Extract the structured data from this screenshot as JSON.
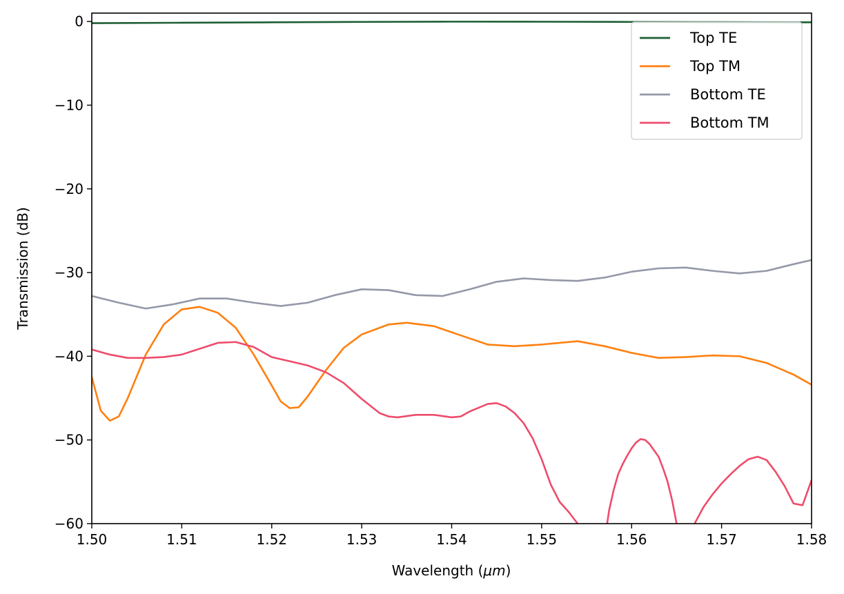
{
  "chart_data": {
    "type": "line",
    "xlabel": "Wavelength (",
    "xlabel_unit": "μm",
    "xlabel_end": ")",
    "ylabel": "Transmission (dB)",
    "xlim": [
      1.5,
      1.58
    ],
    "ylim": [
      -60,
      1
    ],
    "x_ticks": [
      1.5,
      1.51,
      1.52,
      1.53,
      1.54,
      1.55,
      1.56,
      1.57,
      1.58
    ],
    "x_tick_labels": [
      "1.50",
      "1.51",
      "1.52",
      "1.53",
      "1.54",
      "1.55",
      "1.56",
      "1.57",
      "1.58"
    ],
    "y_ticks": [
      0,
      -10,
      -20,
      -30,
      -40,
      -50,
      -60
    ],
    "y_tick_labels": [
      "0",
      "−10",
      "−20",
      "−30",
      "−40",
      "−50",
      "−60"
    ],
    "grid": false,
    "legend_position": "top-right",
    "series": [
      {
        "name": "Top TE",
        "color": "#1c5e33",
        "x": [
          1.5,
          1.51,
          1.52,
          1.53,
          1.54,
          1.55,
          1.56,
          1.57,
          1.58
        ],
        "y": [
          -0.2,
          -0.15,
          -0.1,
          -0.05,
          -0.02,
          -0.03,
          -0.05,
          -0.08,
          -0.1
        ]
      },
      {
        "name": "Top TM",
        "color": "#ff7f0e",
        "x": [
          1.5,
          1.501,
          1.502,
          1.503,
          1.504,
          1.506,
          1.508,
          1.51,
          1.512,
          1.514,
          1.516,
          1.518,
          1.52,
          1.521,
          1.522,
          1.523,
          1.524,
          1.526,
          1.528,
          1.53,
          1.533,
          1.535,
          1.538,
          1.541,
          1.544,
          1.547,
          1.55,
          1.554,
          1.557,
          1.56,
          1.563,
          1.566,
          1.569,
          1.572,
          1.575,
          1.578,
          1.58
        ],
        "y": [
          -42.5,
          -46.5,
          -47.7,
          -47.2,
          -45.0,
          -39.8,
          -36.2,
          -34.4,
          -34.1,
          -34.8,
          -36.6,
          -39.8,
          -43.5,
          -45.4,
          -46.2,
          -46.1,
          -44.8,
          -41.7,
          -39.0,
          -37.4,
          -36.2,
          -36.0,
          -36.4,
          -37.5,
          -38.6,
          -38.8,
          -38.6,
          -38.2,
          -38.8,
          -39.6,
          -40.2,
          -40.1,
          -39.9,
          -40.0,
          -40.8,
          -42.2,
          -43.4
        ]
      },
      {
        "name": "Bottom TE",
        "color": "#9498a8",
        "x": [
          1.5,
          1.503,
          1.506,
          1.509,
          1.512,
          1.515,
          1.518,
          1.521,
          1.524,
          1.527,
          1.53,
          1.533,
          1.536,
          1.539,
          1.542,
          1.545,
          1.548,
          1.551,
          1.554,
          1.557,
          1.56,
          1.563,
          1.566,
          1.569,
          1.572,
          1.575,
          1.578,
          1.58
        ],
        "y": [
          -32.8,
          -33.6,
          -34.3,
          -33.8,
          -33.1,
          -33.1,
          -33.6,
          -34.0,
          -33.6,
          -32.7,
          -32.0,
          -32.1,
          -32.7,
          -32.8,
          -32.0,
          -31.1,
          -30.7,
          -30.9,
          -31.0,
          -30.6,
          -29.9,
          -29.5,
          -29.4,
          -29.8,
          -30.1,
          -29.8,
          -29.0,
          -28.5
        ]
      },
      {
        "name": "Bottom TM",
        "color": "#ee4b6b",
        "x": [
          1.5,
          1.502,
          1.504,
          1.506,
          1.508,
          1.51,
          1.512,
          1.514,
          1.516,
          1.518,
          1.52,
          1.522,
          1.524,
          1.526,
          1.528,
          1.53,
          1.532,
          1.533,
          1.534,
          1.536,
          1.538,
          1.54,
          1.541,
          1.542,
          1.544,
          1.545,
          1.546,
          1.547,
          1.548,
          1.549,
          1.55,
          1.551,
          1.552,
          1.553,
          1.554,
          1.555,
          1.5555,
          1.556,
          1.557,
          1.5575,
          1.558,
          1.5585,
          1.559,
          1.5595,
          1.56,
          1.5605,
          1.561,
          1.5615,
          1.562,
          1.563,
          1.5635,
          1.564,
          1.5645,
          1.565,
          1.5655,
          1.566,
          1.5665,
          1.567,
          1.5675,
          1.568,
          1.569,
          1.57,
          1.571,
          1.572,
          1.573,
          1.574,
          1.575,
          1.576,
          1.577,
          1.578,
          1.579,
          1.58
        ],
        "y": [
          -39.2,
          -39.8,
          -40.2,
          -40.2,
          -40.1,
          -39.8,
          -39.1,
          -38.4,
          -38.3,
          -38.9,
          -40.1,
          -40.6,
          -41.1,
          -41.9,
          -43.2,
          -45.1,
          -46.8,
          -47.2,
          -47.3,
          -47.0,
          -47.0,
          -47.3,
          -47.2,
          -46.6,
          -45.7,
          -45.6,
          -46.0,
          -46.8,
          -48.0,
          -49.8,
          -52.3,
          -55.3,
          -57.4,
          -58.6,
          -60.0,
          -61.0,
          -62.5,
          -64.0,
          -62.0,
          -58.4,
          -56.0,
          -54.1,
          -52.9,
          -51.9,
          -51.0,
          -50.3,
          -49.9,
          -50.0,
          -50.5,
          -52.0,
          -53.4,
          -55.0,
          -57.2,
          -60.0,
          -62.5,
          -64.0,
          -62.0,
          -60.0,
          -59.0,
          -58.0,
          -56.5,
          -55.2,
          -54.1,
          -53.1,
          -52.3,
          -52.0,
          -52.4,
          -53.8,
          -55.5,
          -57.6,
          -57.8,
          -54.8
        ]
      }
    ]
  }
}
